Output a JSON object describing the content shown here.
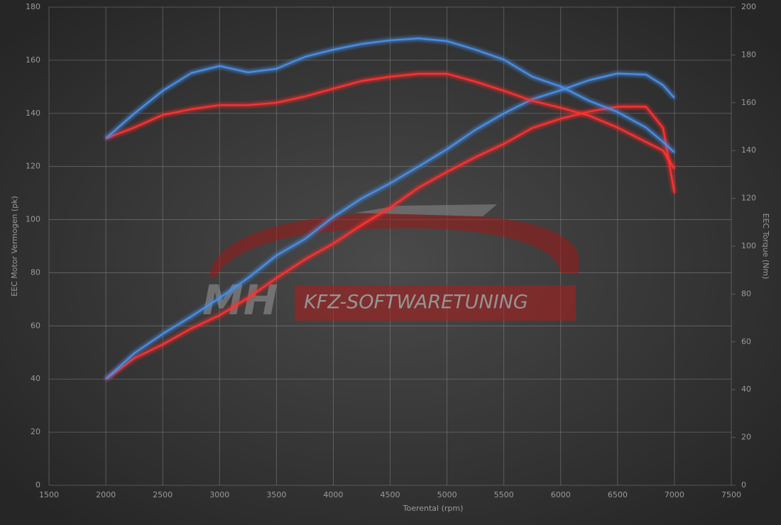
{
  "chart_data": {
    "type": "line",
    "x_label": "Toerental (rpm)",
    "y_label": "EEC Motor Vermogen (pk)",
    "y2_label": "EEC Torque (Nm)",
    "watermark": [
      "MH",
      "KFZ-SOFTWARETUNING"
    ],
    "x": [
      2000,
      2250,
      2500,
      2750,
      3000,
      3250,
      3500,
      3750,
      4000,
      4250,
      4500,
      4750,
      5000,
      5250,
      5500,
      5750,
      6000,
      6250,
      6500,
      6750,
      6900,
      7000
    ],
    "xlim": [
      1500,
      7500
    ],
    "xticks": [
      1500,
      2000,
      2500,
      3000,
      3500,
      4000,
      4500,
      5000,
      5500,
      6000,
      6500,
      7000,
      7500
    ],
    "ylim": [
      0,
      180
    ],
    "yticks": [
      0,
      20,
      40,
      60,
      80,
      100,
      120,
      140,
      160,
      180
    ],
    "y2lim": [
      0,
      200
    ],
    "y2ticks": [
      0,
      20,
      40,
      60,
      80,
      100,
      120,
      140,
      160,
      180,
      200
    ],
    "grid": true,
    "series": [
      {
        "color": "#ff3030",
        "axis": "y",
        "values": [
          40,
          47.8,
          53,
          59,
          64,
          70.5,
          78,
          85,
          91,
          98,
          104.5,
          112,
          118,
          123.5,
          128.5,
          134.5,
          138,
          140.7,
          142.5,
          142.5,
          134.5,
          110
        ]
      },
      {
        "color": "#4a8fe8",
        "axis": "y",
        "values": [
          40,
          49.7,
          57,
          63.5,
          70.5,
          78,
          86.5,
          92.7,
          101,
          108,
          113.7,
          120,
          126.5,
          133.8,
          140,
          145.3,
          148.7,
          152.5,
          155,
          154.6,
          150.6,
          145.8
        ]
      },
      {
        "color": "#ff3030",
        "axis": "y2",
        "values": [
          145.1,
          149.6,
          154.9,
          157.3,
          159,
          159,
          160,
          162.6,
          165.9,
          169.1,
          170.9,
          172.1,
          172.1,
          168.8,
          165,
          160.8,
          157.9,
          154.6,
          149.6,
          143.6,
          140,
          132.3
        ]
      },
      {
        "color": "#4a8fe8",
        "axis": "y2",
        "values": [
          145.1,
          155.5,
          165,
          172.4,
          175.4,
          172.7,
          174.2,
          179.2,
          182.2,
          184.6,
          186.1,
          186.9,
          185.8,
          182.2,
          178,
          170.9,
          166.8,
          160.8,
          156.1,
          149.6,
          143.6,
          139.2
        ]
      }
    ]
  }
}
